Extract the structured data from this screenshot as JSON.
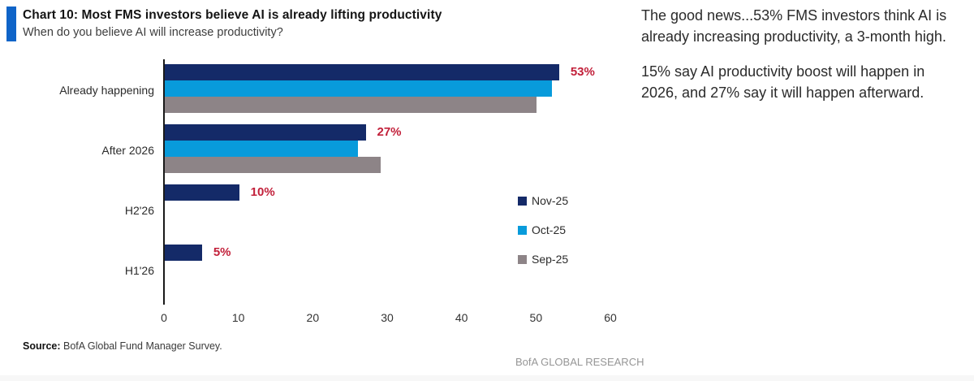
{
  "header": {
    "title": "Chart 10: Most FMS investors believe AI is already lifting productivity",
    "subtitle": "When do you believe AI will increase productivity?"
  },
  "accent_color": "#0f64c8",
  "chart_data": {
    "type": "bar",
    "orientation": "horizontal",
    "categories": [
      "Already happening",
      "After 2026",
      "H2'26",
      "H1'26"
    ],
    "series": [
      {
        "name": "Nov-25",
        "color": "#142a68",
        "values": [
          53,
          27,
          10,
          5
        ]
      },
      {
        "name": "Oct-25",
        "color": "#089bdb",
        "values": [
          52,
          26,
          null,
          null
        ]
      },
      {
        "name": "Sep-25",
        "color": "#8d8487",
        "values": [
          50,
          29,
          null,
          null
        ]
      }
    ],
    "data_labels": [
      "53%",
      "27%",
      "10%",
      "5%"
    ],
    "data_label_color": "#c2203a",
    "xlim": [
      0,
      60
    ],
    "x_ticks": [
      0,
      10,
      20,
      30,
      40,
      50,
      60
    ],
    "grid": false,
    "legend_position": "middle-right"
  },
  "annotation": {
    "paragraphs": [
      "The good news...53% FMS investors think AI is already increasing productivity, a 3-month high.",
      "15% say AI productivity boost will happen in 2026, and 27% say it will happen afterward."
    ]
  },
  "source": {
    "label": "Source:",
    "text": " BofA Global Fund Manager Survey."
  },
  "footer": {
    "brand": "BofA GLOBAL RESEARCH"
  }
}
